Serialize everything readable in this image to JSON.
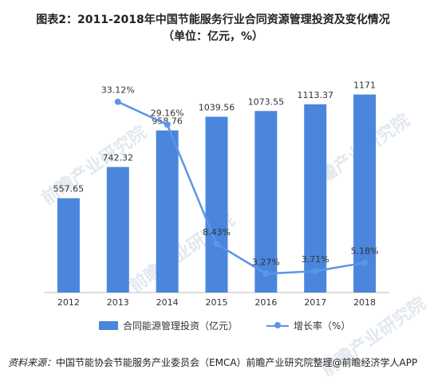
{
  "title_line1": "图表2：2011-2018年中国节能服务行业合同资源管理投资及变化情况",
  "title_line2": "（单位：亿元，%）",
  "chart_data": {
    "type": "bar",
    "categories": [
      "2012",
      "2013",
      "2014",
      "2015",
      "2016",
      "2017",
      "2018"
    ],
    "series": [
      {
        "name": "合同能源管理投资（亿元）",
        "type": "bar",
        "values": [
          557.65,
          742.32,
          958.76,
          1039.56,
          1073.55,
          1113.37,
          1171
        ],
        "labels": [
          "557.65",
          "742.32",
          "958.76",
          "1039.56",
          "1073.55",
          "1113.37",
          "1171"
        ],
        "color": "#4a86dc"
      },
      {
        "name": "增长率（%）",
        "type": "line",
        "values": [
          null,
          33.12,
          29.16,
          8.43,
          3.27,
          3.71,
          5.18
        ],
        "labels": [
          "",
          "33.12%",
          "29.16%",
          "8.43%",
          "3.27%",
          "3.71%",
          "5.18%"
        ],
        "color": "#5b95e8"
      }
    ],
    "y_bar_range": [
      0,
      1400
    ],
    "y_line_range": [
      0,
      40
    ],
    "grid": false,
    "legend_position": "bottom"
  },
  "source_label": "资料来源：",
  "source_text": "中国节能协会节能服务产业委员会（EMCA）前瞻产业研究院整理",
  "brand_text": "@前瞻经济学人APP",
  "watermark_text": "前瞻产业研究院"
}
